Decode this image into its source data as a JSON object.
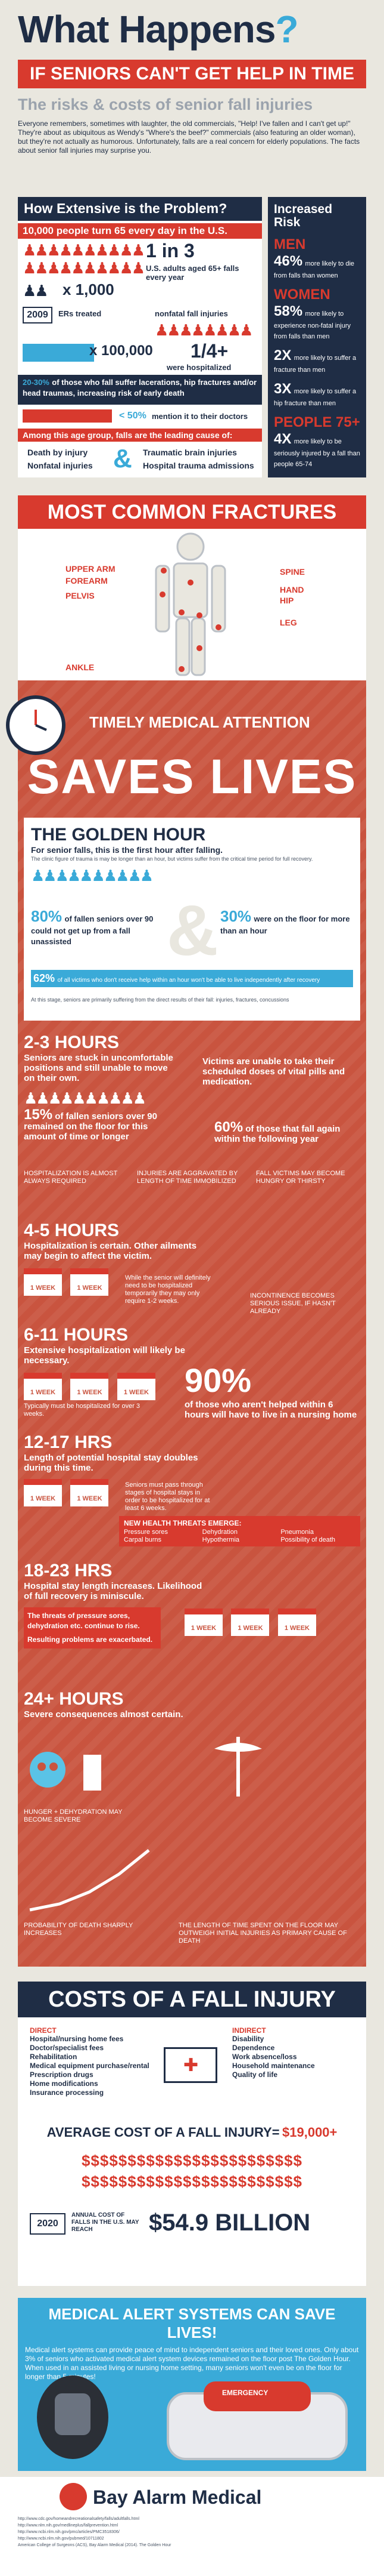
{
  "header": {
    "title": "What Happens",
    "title_mark": "?",
    "subtitle": "IF SENIORS CAN'T GET HELP IN TIME",
    "tagline": "The risks & costs of senior fall injuries",
    "intro": "Everyone remembers, sometimes with laughter, the old commercials, \"Help! I've fallen and I can't get up!\" They're about as ubiquitous as Wendy's \"Where's the beef?\" commercials (also featuring an older woman), but they're not actually as humorous. Unfortunately, falls are a real concern for elderly populations. The facts about senior fall injuries may surprise you."
  },
  "extent": {
    "heading": "How Extensive is the Problem?",
    "daily": "10,000 people turn 65 every day in the U.S.",
    "one_in_three": "1 in 3",
    "one_in_three_text": "U.S. adults aged 65+ falls every year",
    "year": "2009",
    "er_label": "ERs treated",
    "er_value": "x 1,000",
    "nonfatal": "nonfatal fall injuries",
    "hosp_value": "x 100,000",
    "quarter": "1/4+",
    "quarter_text": "were hospitalized",
    "pct_fall": "20-30%",
    "pct_fall_text": "of those who fall suffer lacerations, hip fractures and/or head traumas, increasing risk of early death",
    "less_half": "< 50%",
    "less_half_text": "mention it to their doctors",
    "leading_cause": "Among this age group, falls are the leading cause of:",
    "causes": [
      "Death by injury",
      "Nonfatal injuries",
      "Traumatic brain injuries",
      "Hospital trauma admissions"
    ]
  },
  "risk": {
    "heading": "Increased Risk",
    "items": [
      {
        "label": "MEN",
        "pct": "46%",
        "text": "more likely to die from falls than women"
      },
      {
        "label": "WOMEN",
        "pct": "58%",
        "text": "more likely to experience non-fatal injury from falls than men"
      },
      {
        "label": "",
        "pct": "2X",
        "text": "more likely to suffer a fracture than men"
      },
      {
        "label": "",
        "pct": "3X",
        "text": "more likely to suffer a hip fracture than men"
      },
      {
        "label": "PEOPLE 75+",
        "pct": "4X",
        "text": "more likely to be seriously injured by a fall than people 65-74"
      }
    ]
  },
  "fractures": {
    "heading": "MOST COMMON FRACTURES",
    "labels": [
      "UPPER ARM",
      "FOREARM",
      "PELVIS",
      "ANKLE",
      "SPINE",
      "HAND",
      "HIP",
      "LEG"
    ]
  },
  "timeline": {
    "timely": "TIMELY MEDICAL ATTENTION",
    "saves": "SAVES LIVES",
    "golden": {
      "title": "THE GOLDEN HOUR",
      "sub": "For senior falls, this is the first hour after falling.",
      "note": "The clinic figure of trauma is may be longer than an hour, but victims suffer from the critical time period for full recovery.",
      "stat1": "80%",
      "stat1_text": "of fallen seniors over 90 could not get up from a fall unassisted",
      "stat2": "30%",
      "stat2_text": "were on the floor for more than an hour",
      "stat3": "62%",
      "stat3_text": "of all victims who don't receive help within an hour won't be able to live independently after recovery",
      "footer": "At this stage, seniors are primarily suffering from the direct results of their fall: injuries, fractures, concussions"
    },
    "h2_3": {
      "title": "2-3 HOURS",
      "text": "Seniors are stuck in uncomfortable positions and still unable to move on their own.",
      "side": "Victims are unable to take their scheduled doses of vital pills and medication.",
      "stat1": "15%",
      "stat1_text": "of fallen seniors over 90 remained on the floor for this amount of time or longer",
      "stat2": "60%",
      "stat2_text": "of those that fall again within the following year",
      "cap1": "HOSPITALIZATION IS ALMOST ALWAYS REQUIRED",
      "cap2": "INJURIES ARE AGGRAVATED BY LENGTH OF TIME IMMOBILIZED",
      "cap3": "FALL VICTIMS MAY BECOME HUNGRY OR THIRSTY"
    },
    "h4_5": {
      "title": "4-5 HOURS",
      "text": "Hospitalization is certain. Other ailments may begin to affect the victim.",
      "week": "1 WEEK",
      "note": "While the senior will definitely need to be hospitalized temporarily they may only require 1-2 weeks.",
      "cap": "INCONTINENCE BECOMES SERIOUS ISSUE, IF HASN'T ALREADY"
    },
    "h6_11": {
      "title": "6-11 HOURS",
      "text": "Extensive hospitalization will likely be necessary.",
      "stat": "90%",
      "stat_text": "of those who aren't helped within 6 hours will have to live in a nursing home",
      "note": "Typically must be hospitalized for over 3 weeks."
    },
    "h12_17": {
      "title": "12-17 HRS",
      "text": "Length of potential hospital stay doubles during this time.",
      "note": "Seniors must pass through stages of hospital stays in order to be hospitalized for at least 6 weeks.",
      "threats_h": "NEW HEALTH THREATS EMERGE:",
      "threats": [
        "Pressure sores",
        "Carpal burns",
        "Dehydration",
        "Hypothermia",
        "Pneumonia",
        "Possibility of death"
      ]
    },
    "h18_23": {
      "title": "18-23 HRS",
      "text": "Hospital stay length increases. Likelihood of full recovery is miniscule.",
      "note1": "The threats of pressure sores, dehydration etc. continue to rise.",
      "note2": "Resulting problems are exacerbated."
    },
    "h24": {
      "title": "24+ HOURS",
      "text": "Severe consequences almost certain.",
      "cap1": "HUNGER + DEHYDRATION MAY BECOME SEVERE",
      "cap2": "PROBABILITY OF DEATH SHARPLY INCREASES",
      "cap3": "THE LENGTH OF TIME SPENT ON THE FLOOR MAY OUTWEIGH INITIAL INJURIES AS PRIMARY CAUSE OF DEATH"
    }
  },
  "costs": {
    "heading": "COSTS OF A FALL INJURY",
    "direct_h": "DIRECT",
    "direct": [
      "Hospital/nursing home fees",
      "Doctor/specialist fees",
      "Rehabilitation",
      "Medical equipment purchase/rental",
      "Prescription drugs",
      "Home modifications",
      "Insurance processing"
    ],
    "indirect_h": "INDIRECT",
    "indirect": [
      "Disability",
      "Dependence",
      "Work absence/loss",
      "Household maintenance",
      "Quality of life"
    ],
    "avg_label": "AVERAGE COST OF A FALL INJURY=",
    "avg_value": "$19,000+",
    "dollar_row": "$$$$$$$$$$$$$$$$$$$$$$$$",
    "year": "2020",
    "annual_label": "ANNUAL COST OF FALLS IN THE U.S. MAY REACH",
    "annual_value": "$54.9 BILLION"
  },
  "alert": {
    "heading": "MEDICAL ALERT SYSTEMS CAN SAVE LIVES!",
    "text": "Medical alert systems can provide peace of mind to independent seniors and their loved ones. Only about 3% of seniors who activated medical alert system devices remained on the floor post The Golden Hour. When used in an assisted living or nursing home setting, many seniors won't even be on the floor for longer than 5 minutes!",
    "device_label": "EMERGENCY"
  },
  "logo": {
    "name": "Bay Alarm Medical"
  },
  "sources": [
    "http://www.cdc.gov/homeandrecreationalsafety/falls/adultfalls.html",
    "http://www.nlm.nih.gov/medlineplus/fallprevention.html",
    "http://www.ncbi.nlm.nih.gov/pmc/articles/PMC3518306/",
    "http://www.ncbi.nlm.nih.gov/pubmed/10711802",
    "American College of Surgeons (ACS), Bay Alarm Medical (2014). The Golden Hour"
  ],
  "colors": {
    "navy": "#1f2d45",
    "red": "#d83a2e",
    "blue": "#3aaad8",
    "timeline": "#c9543f",
    "bg": "#e9e7df"
  }
}
